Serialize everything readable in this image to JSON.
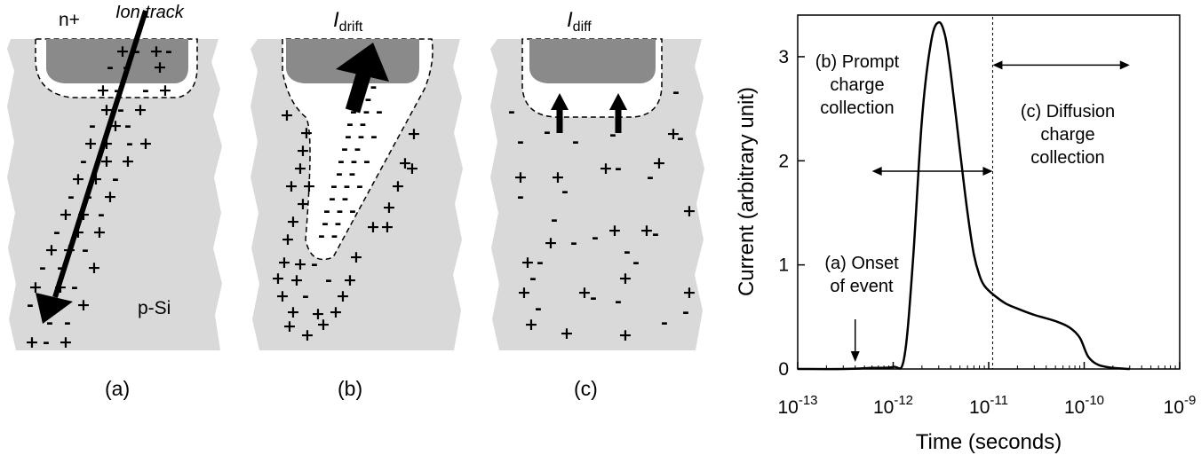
{
  "panel_a": {
    "label_n": "n+",
    "label_track": "Ion track",
    "label_psi": "p-Si",
    "caption": "(a)"
  },
  "panel_b": {
    "label_current_main": "I",
    "label_current_sub": "drift",
    "caption": "(b)"
  },
  "panel_c": {
    "label_current_main": "I",
    "label_current_sub": "diff",
    "caption": "(c)"
  },
  "colors": {
    "substrate": "#d9d9d9",
    "contact": "#8a8a8a",
    "depletion": "#ffffff",
    "ink": "#000000"
  },
  "chart_data": {
    "type": "line",
    "xscale": "log",
    "xlabel": "Time (seconds)",
    "ylabel": "Current (arbitrary unit)",
    "xlim": [
      1e-13,
      1e-09
    ],
    "ylim": [
      0,
      3.4
    ],
    "x_ticks": [
      {
        "value": 1e-13,
        "base": "10",
        "exp": "-13"
      },
      {
        "value": 1e-12,
        "base": "10",
        "exp": "-12"
      },
      {
        "value": 1e-11,
        "base": "10",
        "exp": "-11"
      },
      {
        "value": 1e-10,
        "base": "10",
        "exp": "-10"
      },
      {
        "value": 1e-09,
        "base": "10",
        "exp": "-9"
      }
    ],
    "y_ticks": [
      0,
      1,
      2,
      3
    ],
    "series": [
      {
        "x": [
          1e-13,
          3e-13,
          6e-13,
          1e-12,
          1.3e-12,
          1.6e-12,
          2e-12,
          2.5e-12,
          3e-12,
          3.5e-12,
          4e-12,
          5e-12,
          6e-12,
          7e-12,
          8e-12,
          9e-12,
          1.1e-11,
          1.5e-11,
          2e-11,
          3e-11,
          5e-11,
          7e-11,
          9e-11,
          1.1e-10,
          1.4e-10,
          2e-10,
          3e-10
        ],
        "y": [
          0.0,
          0.0,
          0.01,
          0.02,
          0.1,
          1.0,
          2.4,
          3.15,
          3.33,
          3.2,
          2.85,
          2.1,
          1.5,
          1.1,
          0.9,
          0.8,
          0.72,
          0.63,
          0.58,
          0.52,
          0.46,
          0.4,
          0.3,
          0.12,
          0.04,
          0.01,
          0.0
        ]
      }
    ],
    "annotations": [
      {
        "id": "onset",
        "lines": [
          "(a) Onset",
          "of event"
        ],
        "arrow_at_x": 4e-13
      },
      {
        "id": "prompt",
        "lines": [
          "(b) Prompt",
          "charge",
          "collection"
        ],
        "range": [
          6e-13,
          1.1e-11
        ],
        "arrow_y": 1.9
      },
      {
        "id": "diffusion",
        "lines": [
          "(c) Diffusion",
          "charge",
          "collection"
        ],
        "range": [
          1.1e-11,
          3e-10
        ],
        "arrow_y": 2.92
      }
    ],
    "divider_x": 1.1e-11
  }
}
